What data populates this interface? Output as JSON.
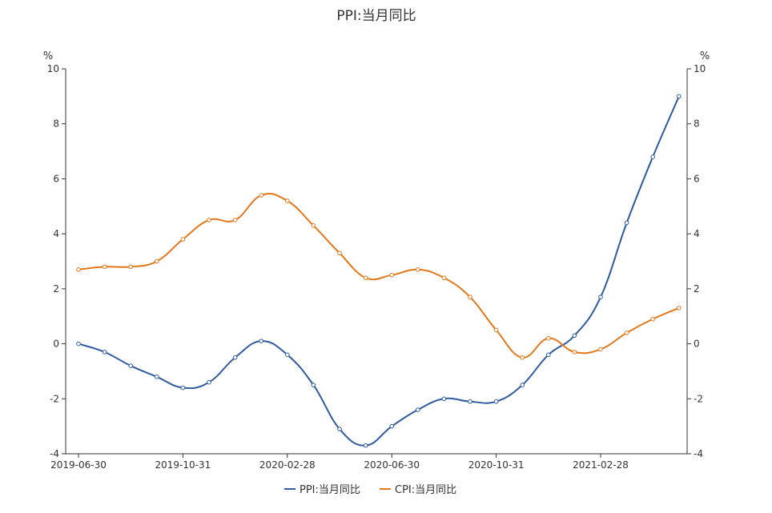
{
  "chart_data": {
    "type": "line",
    "title": "PPI:当月同比",
    "ylabel_left": "%",
    "ylabel_right": "%",
    "ylim": [
      -4,
      10
    ],
    "yticks": [
      "-4",
      "-2",
      "0",
      "2",
      "4",
      "6",
      "8",
      "10"
    ],
    "xtick_labels": [
      "2019-06-30",
      "2019-10-31",
      "2020-02-28",
      "2020-06-30",
      "2020-10-31",
      "2021-02-28"
    ],
    "x": [
      "2019-06",
      "2019-07",
      "2019-08",
      "2019-09",
      "2019-10",
      "2019-11",
      "2019-12",
      "2020-01",
      "2020-02",
      "2020-03",
      "2020-04",
      "2020-05",
      "2020-06",
      "2020-07",
      "2020-08",
      "2020-09",
      "2020-10",
      "2020-11",
      "2020-12",
      "2021-01",
      "2021-02",
      "2021-03",
      "2021-04",
      "2021-05"
    ],
    "series": [
      {
        "name": "PPI:当月同比",
        "color": "#2e5b9f",
        "values": [
          0.0,
          -0.3,
          -0.8,
          -1.2,
          -1.6,
          -1.4,
          -0.5,
          0.1,
          -0.4,
          -1.5,
          -3.1,
          -3.7,
          -3.0,
          -2.4,
          -2.0,
          -2.1,
          -2.1,
          -1.5,
          -0.4,
          0.3,
          1.7,
          4.4,
          6.8,
          9.0
        ]
      },
      {
        "name": "CPI:当月同比",
        "color": "#e3781b",
        "values": [
          2.7,
          2.8,
          2.8,
          3.0,
          3.8,
          4.5,
          4.5,
          5.4,
          5.2,
          4.3,
          3.3,
          2.4,
          2.5,
          2.7,
          2.4,
          1.7,
          0.5,
          -0.5,
          0.2,
          -0.3,
          -0.2,
          0.4,
          0.9,
          1.3
        ]
      }
    ],
    "grid": false,
    "legend_position": "bottom"
  }
}
